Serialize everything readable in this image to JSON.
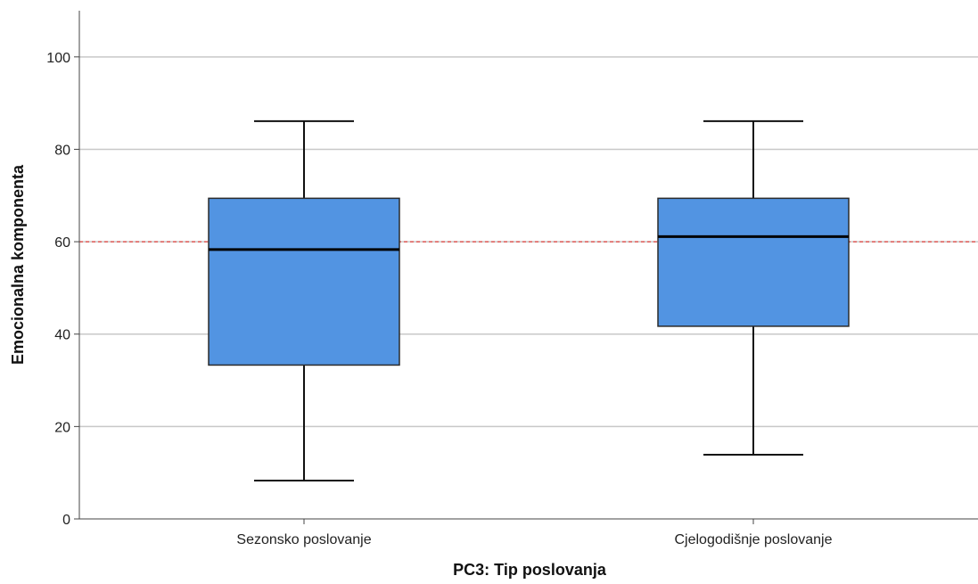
{
  "chart_data": {
    "type": "boxplot",
    "xlabel": "PC3: Tip poslovanja",
    "ylabel": "Emocionalna komponenta",
    "categories": [
      "Sezonsko poslovanje",
      "Cjelogodišnje poslovanje"
    ],
    "boxes": [
      {
        "category": "Sezonsko poslovanje",
        "whisker_low": 8.3,
        "q1": 33.3,
        "median": 58.3,
        "q3": 69.4,
        "whisker_high": 86.1
      },
      {
        "category": "Cjelogodišnje poslovanje",
        "whisker_low": 13.9,
        "q1": 41.7,
        "median": 61.1,
        "q3": 69.4,
        "whisker_high": 86.1
      }
    ],
    "reference_line": {
      "y": 60,
      "color": "#e0403a",
      "style": "dashed"
    },
    "ylim": [
      0,
      110
    ],
    "yticks": [
      0,
      20,
      40,
      60,
      80,
      100
    ],
    "grid": true,
    "box_color": "#5294e2"
  }
}
